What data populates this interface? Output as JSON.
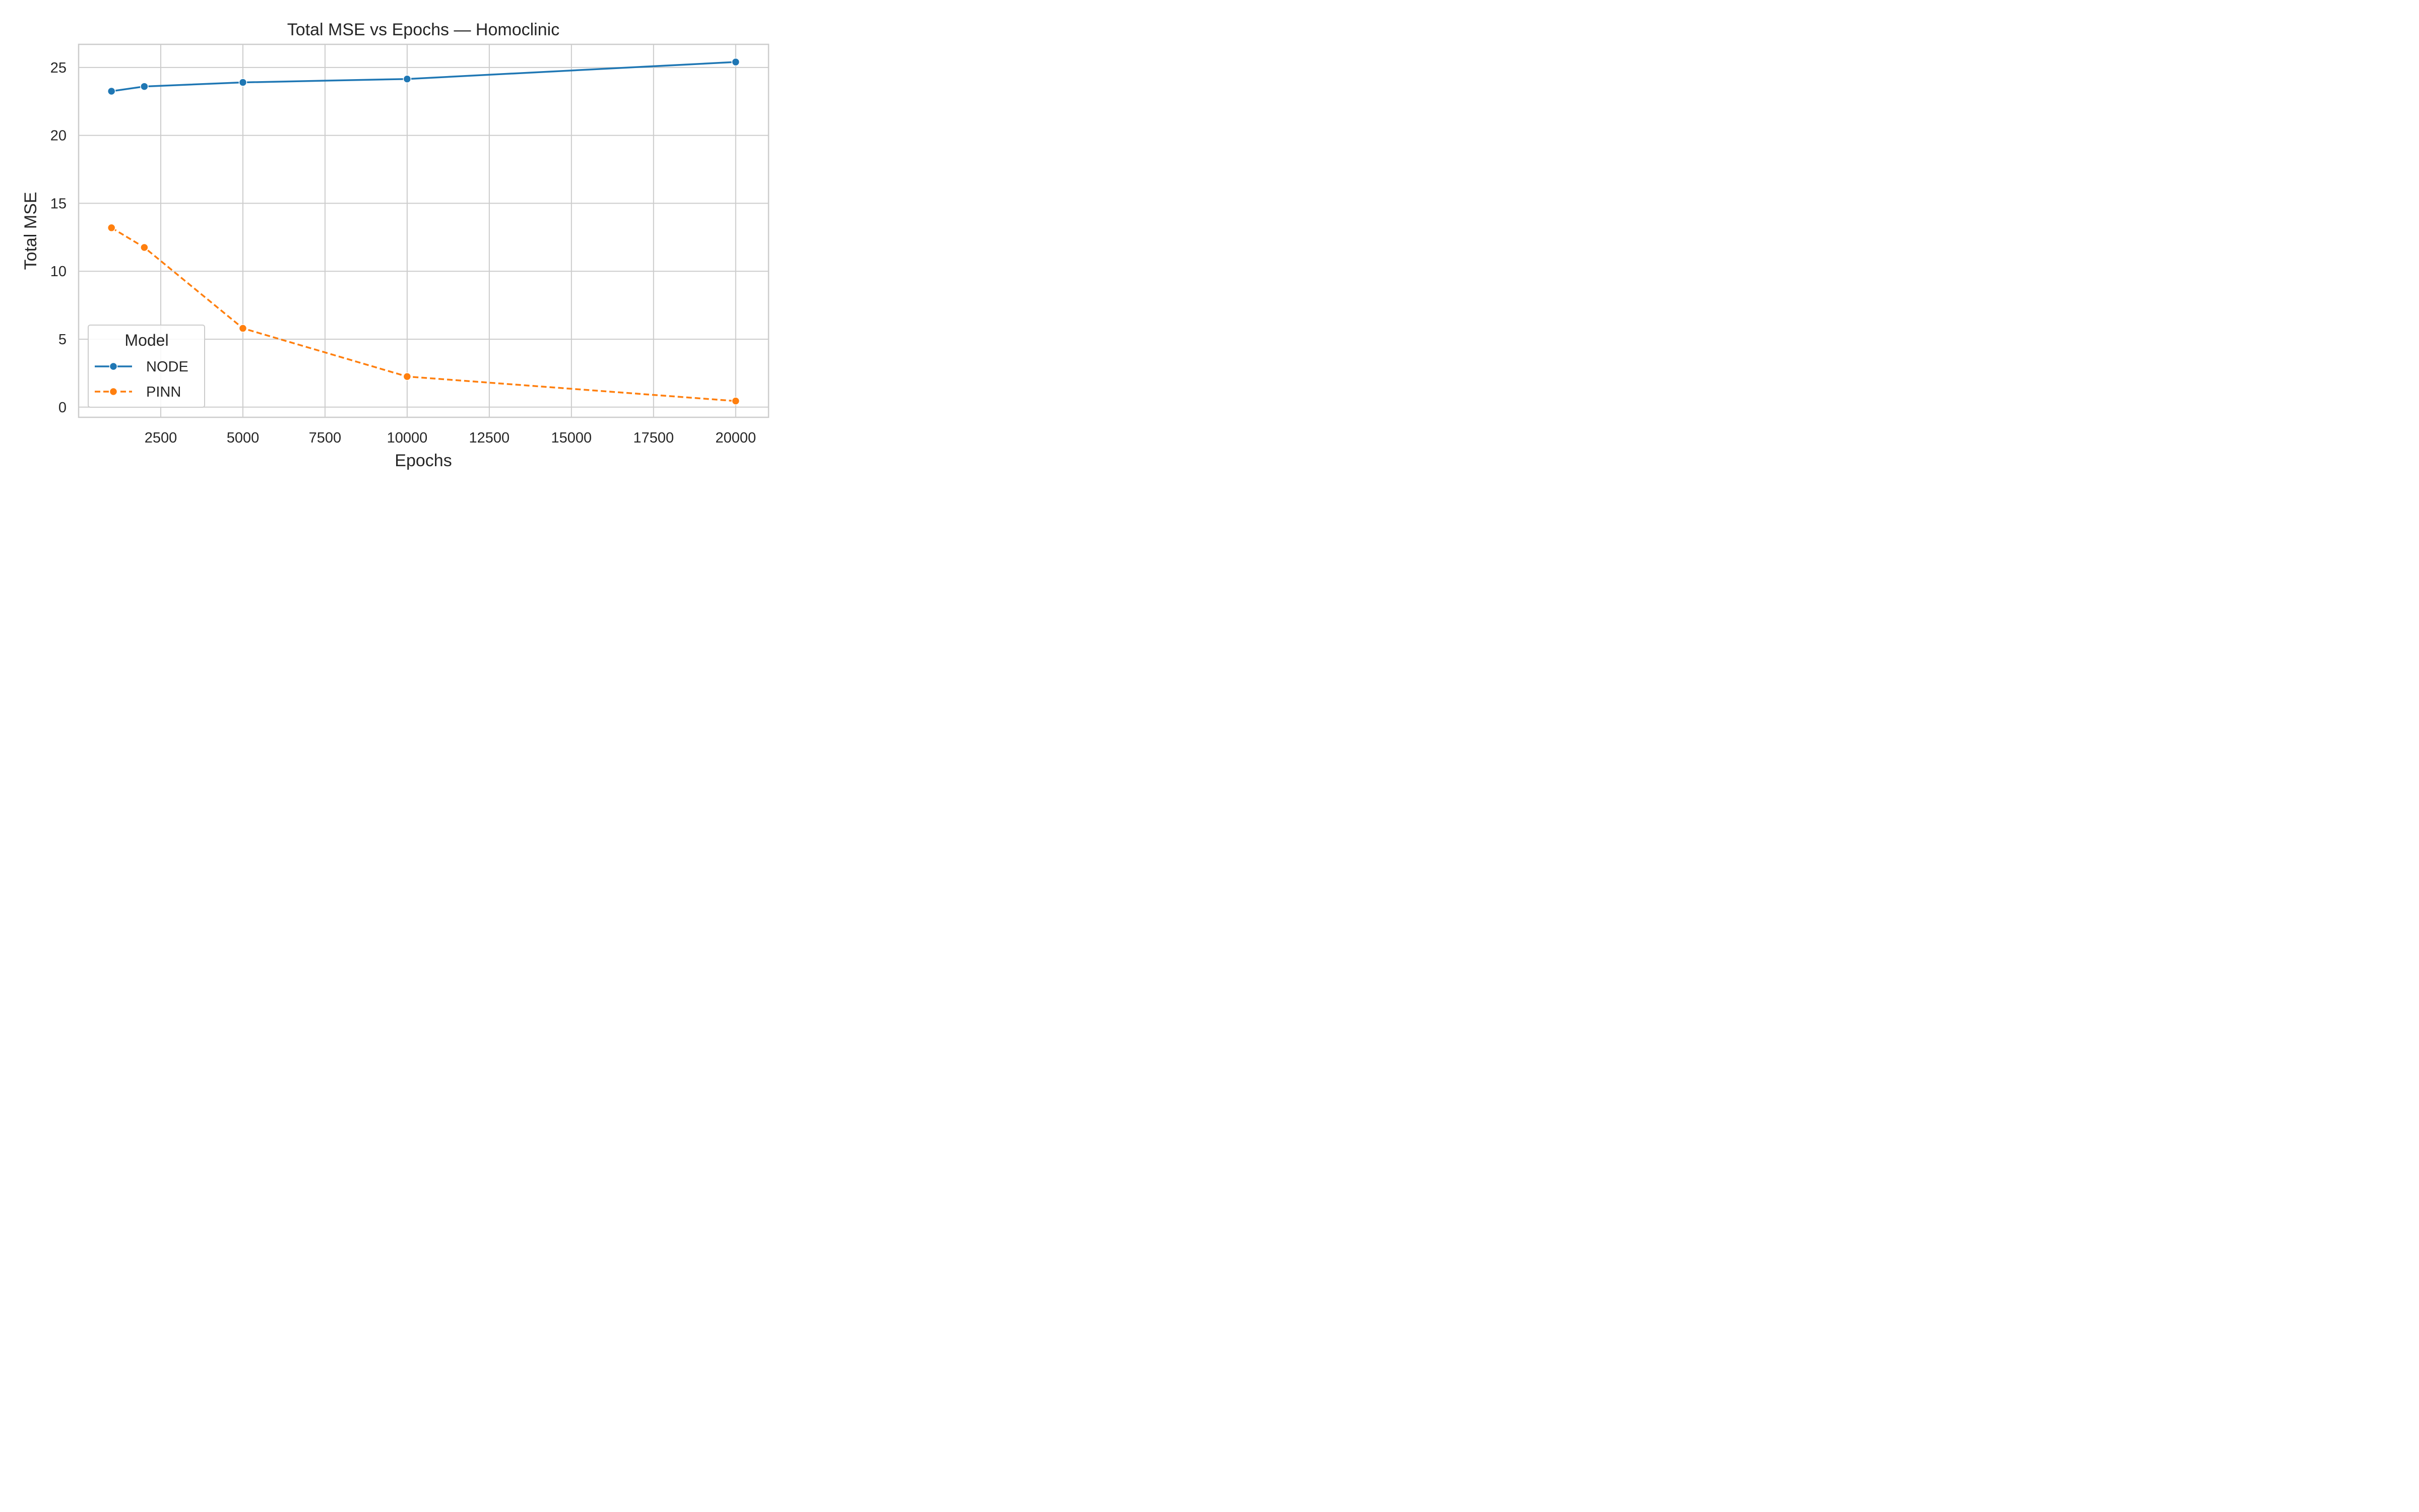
{
  "chart_data": {
    "type": "line",
    "title": "Total MSE vs Epochs — Homoclinic",
    "xlabel": "Epochs",
    "ylabel": "Total MSE",
    "xlim": [
      0,
      21000
    ],
    "ylim": [
      -0.75,
      26.7
    ],
    "xticks": [
      2500,
      5000,
      7500,
      10000,
      12500,
      15000,
      17500,
      20000
    ],
    "yticks": [
      0,
      5,
      10,
      15,
      20,
      25
    ],
    "grid": true,
    "legend": {
      "title": "Model",
      "position": "lower-left"
    },
    "series": [
      {
        "name": "NODE",
        "color": "#1f77b4",
        "dash": "solid",
        "x": [
          1000,
          2000,
          5000,
          10000,
          20000
        ],
        "y": [
          23.25,
          23.6,
          23.9,
          24.15,
          25.4
        ]
      },
      {
        "name": "PINN",
        "color": "#ff7f0e",
        "dash": "dashed",
        "x": [
          1000,
          2000,
          5000,
          10000,
          20000
        ],
        "y": [
          13.2,
          11.75,
          5.8,
          2.25,
          0.45
        ]
      }
    ]
  }
}
